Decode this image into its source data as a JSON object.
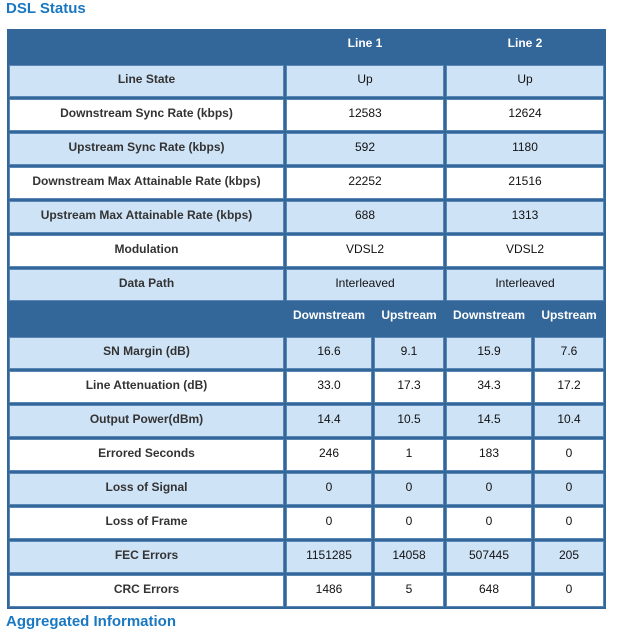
{
  "title": "DSL Status",
  "footer_heading": "Aggregated Information",
  "header": {
    "line1": "Line 1",
    "line2": "Line 2"
  },
  "line_rows": [
    {
      "label": "Line State",
      "line1": "Up",
      "line2": "Up"
    },
    {
      "label": "Downstream Sync Rate (kbps)",
      "line1": "12583",
      "line2": "12624"
    },
    {
      "label": "Upstream Sync Rate (kbps)",
      "line1": "592",
      "line2": "1180"
    },
    {
      "label": "Downstream Max Attainable Rate (kbps)",
      "line1": "22252",
      "line2": "21516"
    },
    {
      "label": "Upstream Max Attainable Rate (kbps)",
      "line1": "688",
      "line2": "1313"
    },
    {
      "label": "Modulation",
      "line1": "VDSL2",
      "line2": "VDSL2"
    },
    {
      "label": "Data Path",
      "line1": "Interleaved",
      "line2": "Interleaved"
    }
  ],
  "subheader": {
    "l1_down": "Downstream",
    "l1_up": "Upstream",
    "l2_down": "Downstream",
    "l2_up": "Upstream"
  },
  "stat_rows": [
    {
      "label": "SN Margin (dB)",
      "v": [
        "16.6",
        "9.1",
        "15.9",
        "7.6"
      ]
    },
    {
      "label": "Line Attenuation (dB)",
      "v": [
        "33.0",
        "17.3",
        "34.3",
        "17.2"
      ]
    },
    {
      "label": "Output Power(dBm)",
      "v": [
        "14.4",
        "10.5",
        "14.5",
        "10.4"
      ]
    },
    {
      "label": "Errored Seconds",
      "v": [
        "246",
        "1",
        "183",
        "0"
      ]
    },
    {
      "label": "Loss of Signal",
      "v": [
        "0",
        "0",
        "0",
        "0"
      ]
    },
    {
      "label": "Loss of Frame",
      "v": [
        "0",
        "0",
        "0",
        "0"
      ]
    },
    {
      "label": "FEC Errors",
      "v": [
        "1151285",
        "14058",
        "507445",
        "205"
      ]
    },
    {
      "label": "CRC Errors",
      "v": [
        "1486",
        "5",
        "648",
        "0"
      ]
    }
  ],
  "colors": {
    "header_bg": "#336699",
    "row_light": "#cfe3f7",
    "row_white": "#ffffff",
    "title": "#1a78c2"
  }
}
